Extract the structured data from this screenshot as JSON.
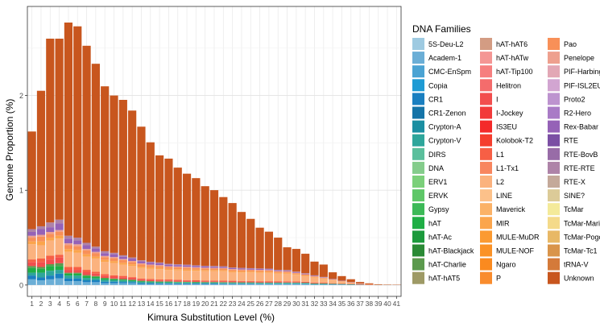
{
  "chart_data": {
    "type": "bar",
    "stacked": true,
    "xlabel": "Kimura Substitution Level (%)",
    "ylabel": "Genome Proportion (%)",
    "ylim": [
      -0.12,
      2.94
    ],
    "yticks": [
      0,
      1,
      2
    ],
    "grid": true,
    "legend_position": "right",
    "legend": {
      "title": "DNA Families",
      "entries": [
        {
          "name": "5S-Deu-L2",
          "color": "#9ECAE1"
        },
        {
          "name": "Academ-1",
          "color": "#6BAED6"
        },
        {
          "name": "CMC-EnSpm",
          "color": "#4BA3D3"
        },
        {
          "name": "Copia",
          "color": "#1F9BD4"
        },
        {
          "name": "CR1",
          "color": "#1A7FC0"
        },
        {
          "name": "CR1-Zenon",
          "color": "#1574A8"
        },
        {
          "name": "Crypton-A",
          "color": "#1B8FA2"
        },
        {
          "name": "Crypton-V",
          "color": "#2EA69B"
        },
        {
          "name": "DIRS",
          "color": "#5BBF9C"
        },
        {
          "name": "DNA",
          "color": "#84CC8B"
        },
        {
          "name": "ERV1",
          "color": "#7BD07A"
        },
        {
          "name": "ERVK",
          "color": "#5FC768"
        },
        {
          "name": "Gypsy",
          "color": "#3CB957"
        },
        {
          "name": "hAT",
          "color": "#1FAE45"
        },
        {
          "name": "hAT-Ac",
          "color": "#1C9A3C"
        },
        {
          "name": "hAT-Blackjack",
          "color": "#2A8A35"
        },
        {
          "name": "hAT-Charlie",
          "color": "#5C9A4E"
        },
        {
          "name": "hAT-hAT5",
          "color": "#9E9A66"
        },
        {
          "name": "hAT-hAT6",
          "color": "#D39C83"
        },
        {
          "name": "hAT-hATw",
          "color": "#F49694"
        },
        {
          "name": "hAT-Tip100",
          "color": "#F67F7F"
        },
        {
          "name": "Helitron",
          "color": "#F46C6C"
        },
        {
          "name": "I",
          "color": "#F24E4E"
        },
        {
          "name": "I-Jockey",
          "color": "#F23A3A"
        },
        {
          "name": "IS3EU",
          "color": "#F42A2A"
        },
        {
          "name": "Kolobok-T2",
          "color": "#F53E2E"
        },
        {
          "name": "L1",
          "color": "#F75F45"
        },
        {
          "name": "L1-Tx1",
          "color": "#F8865F"
        },
        {
          "name": "L2",
          "color": "#FBB27E"
        },
        {
          "name": "LINE",
          "color": "#FCC18A"
        },
        {
          "name": "Maverick",
          "color": "#FBB267"
        },
        {
          "name": "MIR",
          "color": "#FBA54C"
        },
        {
          "name": "MULE-MuDR",
          "color": "#FB9A31"
        },
        {
          "name": "MULE-NOF",
          "color": "#FB9226"
        },
        {
          "name": "Ngaro",
          "color": "#FA8A1F"
        },
        {
          "name": "P",
          "color": "#F98C2D"
        },
        {
          "name": "Pao",
          "color": "#F89058"
        },
        {
          "name": "Penelope",
          "color": "#EEA08E"
        },
        {
          "name": "PIF-Harbinger",
          "color": "#E2A7B5"
        },
        {
          "name": "PIF-ISL2EU",
          "color": "#D2A5D1"
        },
        {
          "name": "Proto2",
          "color": "#BD93CF"
        },
        {
          "name": "R2-Hero",
          "color": "#A97BC6"
        },
        {
          "name": "Rex-Babar",
          "color": "#9562B7"
        },
        {
          "name": "RTE",
          "color": "#7B4FA4"
        },
        {
          "name": "RTE-BovB",
          "color": "#986CA7"
        },
        {
          "name": "RTE-RTE",
          "color": "#AE83A8"
        },
        {
          "name": "RTE-X",
          "color": "#C4A99A"
        },
        {
          "name": "SINE?",
          "color": "#DCCB98"
        },
        {
          "name": "TcMar",
          "color": "#F4EA9A"
        },
        {
          "name": "TcMar-Mariner",
          "color": "#F4DA8A"
        },
        {
          "name": "TcMar-Pogo",
          "color": "#E8B866"
        },
        {
          "name": "TcMar-Tc1",
          "color": "#D9944A"
        },
        {
          "name": "tRNA-V",
          "color": "#D47A3A"
        },
        {
          "name": "Unknown",
          "color": "#C8561E"
        }
      ]
    },
    "categories": [
      "1",
      "2",
      "3",
      "4",
      "5",
      "6",
      "7",
      "8",
      "9",
      "10",
      "11",
      "12",
      "13",
      "14",
      "15",
      "16",
      "17",
      "18",
      "19",
      "20",
      "21",
      "22",
      "23",
      "24",
      "25",
      "26",
      "27",
      "28",
      "29",
      "30",
      "31",
      "32",
      "33",
      "34",
      "35",
      "36",
      "37",
      "38",
      "39",
      "40",
      "41"
    ],
    "series": [
      {
        "name": "Academ-1",
        "values": [
          0.06,
          0.05,
          0.06,
          0.07,
          0.04,
          0.04,
          0.03,
          0.03,
          0.02,
          0.02,
          0.02,
          0.02,
          0.01,
          0.01,
          0.01,
          0.01,
          0.01,
          0.01,
          0.01,
          0.01,
          0.01,
          0.01,
          0.01,
          0.01,
          0.01,
          0.01,
          0.01,
          0.01,
          0.01,
          0.01,
          0.01,
          0.005,
          0.005,
          0.005,
          0.004,
          0.003,
          0.002,
          0.001,
          0.001,
          0.001,
          0.001
        ]
      },
      {
        "name": "CR1",
        "values": [
          0.04,
          0.03,
          0.04,
          0.05,
          0.03,
          0.03,
          0.02,
          0.02,
          0.015,
          0.015,
          0.012,
          0.01,
          0.01,
          0.01,
          0.008,
          0.008,
          0.007,
          0.007,
          0.006,
          0.006,
          0.006,
          0.005,
          0.005,
          0.005,
          0.005,
          0.004,
          0.004,
          0.004,
          0.004,
          0.004,
          0.004,
          0.003,
          0.003,
          0.002,
          0.002,
          0.001,
          0.001,
          0,
          0,
          0,
          0
        ]
      },
      {
        "name": "Crypton-V",
        "values": [
          0.03,
          0.05,
          0.05,
          0.04,
          0.03,
          0.03,
          0.025,
          0.02,
          0.02,
          0.015,
          0.015,
          0.012,
          0.012,
          0.01,
          0.01,
          0.01,
          0.009,
          0.009,
          0.008,
          0.008,
          0.008,
          0.008,
          0.007,
          0.007,
          0.007,
          0.007,
          0.007,
          0.007,
          0.007,
          0.006,
          0.006,
          0.005,
          0.005,
          0.004,
          0.003,
          0.002,
          0.001,
          0.001,
          0,
          0,
          0
        ]
      },
      {
        "name": "hAT",
        "values": [
          0.05,
          0.04,
          0.05,
          0.04,
          0.02,
          0.02,
          0.02,
          0.015,
          0.012,
          0.01,
          0.01,
          0.008,
          0.008,
          0.006,
          0.006,
          0.006,
          0.005,
          0.005,
          0.005,
          0.004,
          0.004,
          0.004,
          0.004,
          0.003,
          0.003,
          0.003,
          0.003,
          0.003,
          0.003,
          0.003,
          0.002,
          0.002,
          0.002,
          0.001,
          0.001,
          0.001,
          0,
          0,
          0,
          0,
          0
        ]
      },
      {
        "name": "hAT-Charlie",
        "values": [
          0.02,
          0.02,
          0.02,
          0.03,
          0.01,
          0.01,
          0.01,
          0.01,
          0.008,
          0.008,
          0.006,
          0.006,
          0.005,
          0.005,
          0.004,
          0.004,
          0.004,
          0.003,
          0.003,
          0.003,
          0.003,
          0.003,
          0.003,
          0.003,
          0.003,
          0.002,
          0.002,
          0.002,
          0.002,
          0.002,
          0.002,
          0.001,
          0.001,
          0.001,
          0.001,
          0,
          0,
          0,
          0,
          0,
          0
        ]
      },
      {
        "name": "I",
        "values": [
          0.04,
          0.05,
          0.05,
          0.06,
          0.03,
          0.03,
          0.03,
          0.025,
          0.02,
          0.02,
          0.018,
          0.015,
          0.012,
          0.012,
          0.01,
          0.01,
          0.01,
          0.009,
          0.009,
          0.008,
          0.008,
          0.008,
          0.008,
          0.007,
          0.007,
          0.007,
          0.007,
          0.007,
          0.006,
          0.006,
          0.005,
          0.005,
          0.004,
          0.003,
          0.002,
          0.002,
          0.001,
          0.001,
          0,
          0,
          0
        ]
      },
      {
        "name": "L1",
        "values": [
          0.03,
          0.04,
          0.04,
          0.03,
          0.03,
          0.03,
          0.025,
          0.02,
          0.02,
          0.015,
          0.015,
          0.012,
          0.012,
          0.01,
          0.01,
          0.01,
          0.01,
          0.009,
          0.009,
          0.008,
          0.008,
          0.008,
          0.008,
          0.007,
          0.007,
          0.007,
          0.007,
          0.007,
          0.007,
          0.006,
          0.005,
          0.005,
          0.004,
          0.003,
          0.002,
          0.002,
          0.001,
          0.001,
          0,
          0,
          0
        ]
      },
      {
        "name": "L2",
        "values": [
          0.16,
          0.14,
          0.16,
          0.17,
          0.16,
          0.15,
          0.14,
          0.14,
          0.13,
          0.13,
          0.12,
          0.12,
          0.11,
          0.11,
          0.11,
          0.1,
          0.1,
          0.1,
          0.1,
          0.1,
          0.1,
          0.1,
          0.09,
          0.09,
          0.09,
          0.09,
          0.09,
          0.08,
          0.08,
          0.07,
          0.06,
          0.05,
          0.04,
          0.03,
          0.02,
          0.015,
          0.008,
          0.004,
          0.002,
          0.001,
          0.001
        ]
      },
      {
        "name": "MIR",
        "values": [
          0.03,
          0.04,
          0.03,
          0.03,
          0.03,
          0.03,
          0.025,
          0.02,
          0.02,
          0.02,
          0.018,
          0.016,
          0.015,
          0.014,
          0.013,
          0.012,
          0.012,
          0.012,
          0.012,
          0.011,
          0.011,
          0.011,
          0.011,
          0.011,
          0.01,
          0.01,
          0.01,
          0.01,
          0.009,
          0.008,
          0.007,
          0.006,
          0.005,
          0.004,
          0.003,
          0.002,
          0.001,
          0.001,
          0,
          0,
          0
        ]
      },
      {
        "name": "Pao",
        "values": [
          0.04,
          0.05,
          0.04,
          0.04,
          0.04,
          0.04,
          0.04,
          0.035,
          0.03,
          0.03,
          0.03,
          0.025,
          0.025,
          0.02,
          0.02,
          0.02,
          0.02,
          0.02,
          0.018,
          0.018,
          0.016,
          0.016,
          0.016,
          0.015,
          0.014,
          0.014,
          0.013,
          0.012,
          0.012,
          0.01,
          0.009,
          0.008,
          0.006,
          0.004,
          0.003,
          0.002,
          0.001,
          0.001,
          0,
          0,
          0
        ]
      },
      {
        "name": "Penelope",
        "values": [
          0.02,
          0.02,
          0.02,
          0.02,
          0.02,
          0.02,
          0.015,
          0.015,
          0.012,
          0.012,
          0.01,
          0.01,
          0.01,
          0.009,
          0.009,
          0.008,
          0.008,
          0.008,
          0.007,
          0.007,
          0.007,
          0.007,
          0.006,
          0.006,
          0.006,
          0.006,
          0.005,
          0.005,
          0.005,
          0.004,
          0.004,
          0.003,
          0.003,
          0.002,
          0.001,
          0.001,
          0,
          0,
          0,
          0,
          0
        ]
      },
      {
        "name": "Rex-Babar",
        "values": [
          0.04,
          0.06,
          0.05,
          0.07,
          0.05,
          0.04,
          0.04,
          0.035,
          0.03,
          0.03,
          0.025,
          0.025,
          0.02,
          0.02,
          0.018,
          0.016,
          0.015,
          0.014,
          0.013,
          0.012,
          0.012,
          0.011,
          0.01,
          0.01,
          0.01,
          0.009,
          0.009,
          0.008,
          0.008,
          0.007,
          0.006,
          0.005,
          0.004,
          0.003,
          0.002,
          0.001,
          0.001,
          0,
          0,
          0,
          0
        ]
      },
      {
        "name": "RTE-RTE",
        "values": [
          0.03,
          0.03,
          0.05,
          0.04,
          0.03,
          0.03,
          0.025,
          0.02,
          0.02,
          0.015,
          0.015,
          0.012,
          0.012,
          0.01,
          0.01,
          0.01,
          0.009,
          0.009,
          0.008,
          0.008,
          0.008,
          0.007,
          0.007,
          0.007,
          0.006,
          0.006,
          0.006,
          0.005,
          0.005,
          0.005,
          0.004,
          0.004,
          0.003,
          0.002,
          0.002,
          0.001,
          0.001,
          0,
          0,
          0,
          0
        ]
      },
      {
        "name": "Unknown",
        "values": [
          1.03,
          1.43,
          1.94,
          1.91,
          2.25,
          2.23,
          2.08,
          1.93,
          1.74,
          1.66,
          1.64,
          1.55,
          1.41,
          1.26,
          1.13,
          1.11,
          1.02,
          0.96,
          0.92,
          0.84,
          0.8,
          0.73,
          0.68,
          0.59,
          0.52,
          0.43,
          0.39,
          0.34,
          0.24,
          0.24,
          0.206,
          0.145,
          0.131,
          0.07,
          0.048,
          0.028,
          0.014,
          0.008,
          0.005,
          0.003,
          0.002
        ]
      }
    ]
  }
}
